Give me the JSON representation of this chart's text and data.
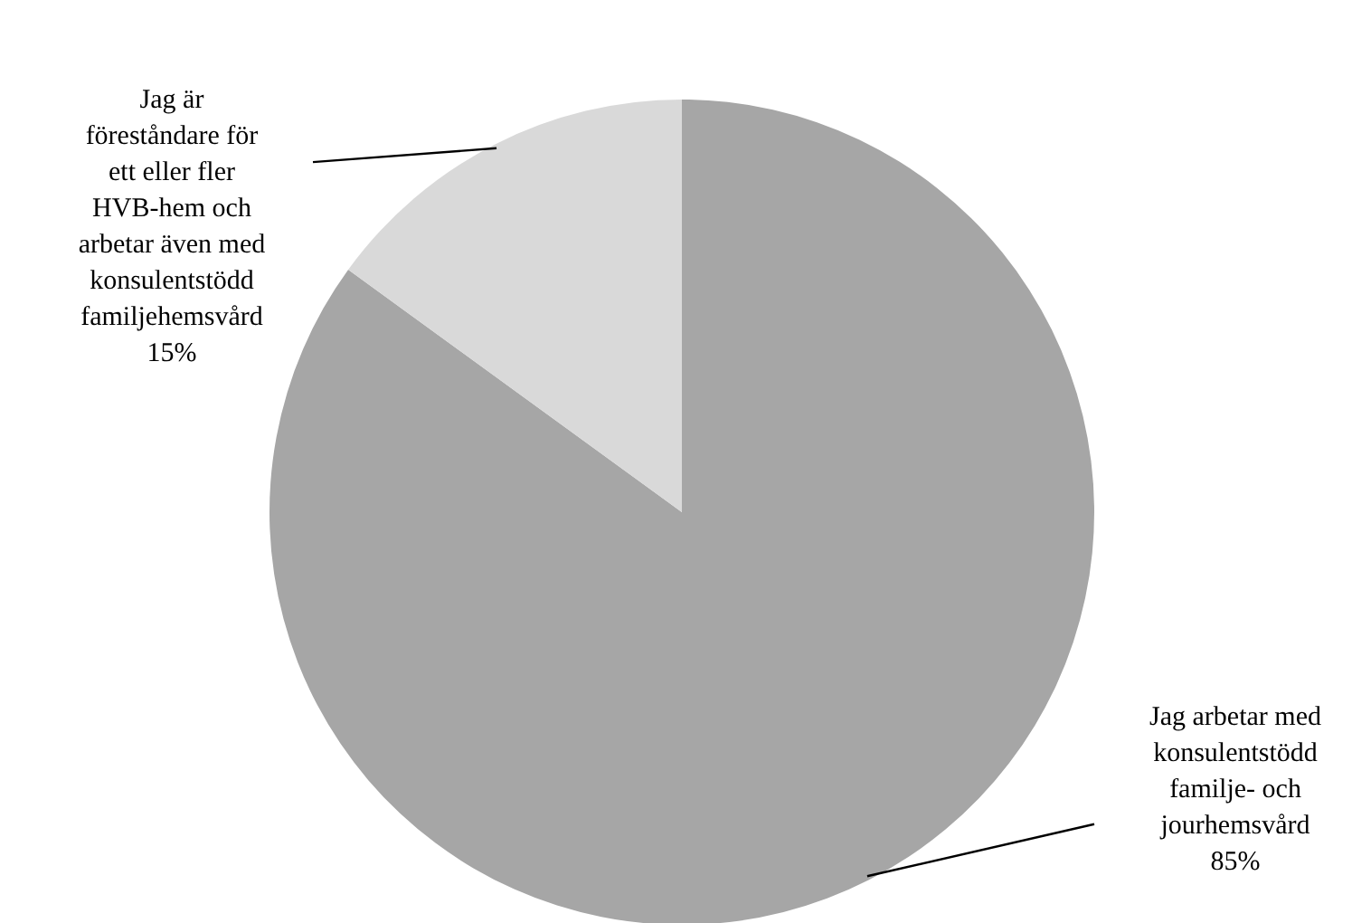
{
  "chart_data": {
    "type": "pie",
    "categories": [
      "Jag arbetar med konsulentstödd familje- och jourhemsvård",
      "Jag är föreståndare för ett eller fler HVB-hem och arbetar även med konsulentstödd familjehemsvård"
    ],
    "values": [
      85,
      15
    ],
    "value_labels": [
      "85%",
      "15%"
    ],
    "colors": [
      "#a6a6a6",
      "#d9d9d9"
    ]
  }
}
